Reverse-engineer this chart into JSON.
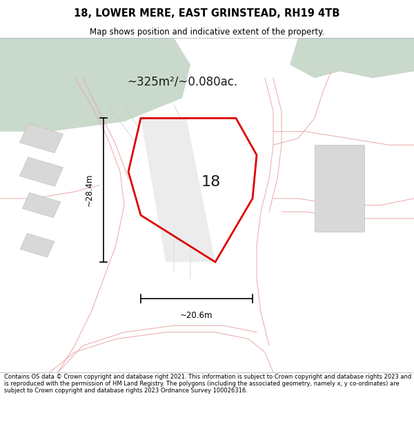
{
  "title": "18, LOWER MERE, EAST GRINSTEAD, RH19 4TB",
  "subtitle": "Map shows position and indicative extent of the property.",
  "footer": "Contains OS data © Crown copyright and database right 2021. This information is subject to Crown copyright and database rights 2023 and is reproduced with the permission of HM Land Registry. The polygons (including the associated geometry, namely x, y co-ordinates) are subject to Crown copyright and database rights 2023 Ordnance Survey 100026316.",
  "area_label": "~325m²/~0.080ac.",
  "width_label": "~20.6m",
  "height_label": "~28.4m",
  "property_number": "18",
  "map_bg": "#f5f4f2",
  "green_patch_color": "#c9d9cc",
  "red_boundary_color": "#dd0000",
  "light_red_line_color": "#e8a8a8",
  "gray_building_color": "#d8d8d8",
  "gray_building_edge": "#c0c0c0",
  "figsize": [
    6.0,
    6.25
  ],
  "dpi": 100
}
